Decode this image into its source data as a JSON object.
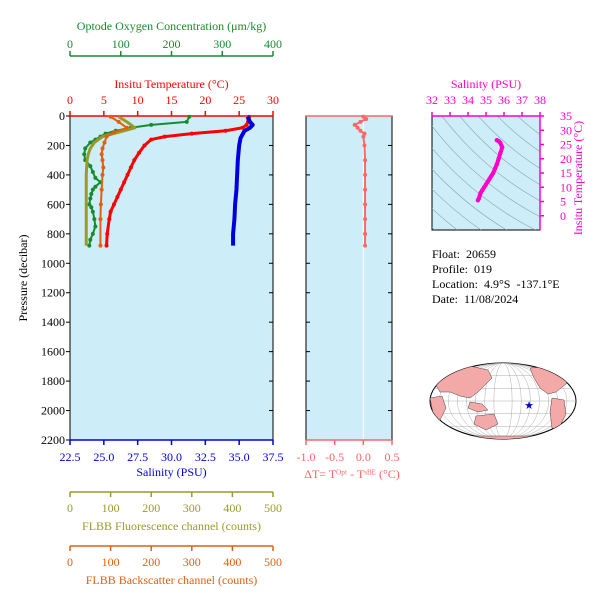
{
  "colors": {
    "oxygen": "#1a8a2e",
    "temperature": "#ff0000",
    "salinity": "#0000dd",
    "fluorescence": "#9a9a2a",
    "backscatter": "#e06010",
    "delta_t": "#ff6666",
    "ts_points": "#ff00cc",
    "plot_bg": "#cdeef8",
    "land": "#f4a9a9",
    "float_marker": "#0000cc"
  },
  "info": {
    "float": "Float:  20659",
    "profile": "Profile:  019",
    "location": "Location:  4.9°S  -137.1°E",
    "date": "Date:  11/08/2024"
  },
  "chart_data": [
    {
      "type": "line",
      "name": "main-profile",
      "ylabel": "Pressure (decibar)",
      "ylim": [
        2200,
        0
      ],
      "yticks": [
        "0",
        "200",
        "400",
        "600",
        "800",
        "1000",
        "1200",
        "1400",
        "1600",
        "1800",
        "2000",
        "2200"
      ],
      "axes": {
        "temperature": {
          "label": "Insitu Temperature (°C)",
          "range": [
            0,
            30
          ],
          "ticks": [
            "0",
            "5",
            "10",
            "15",
            "20",
            "25",
            "30"
          ]
        },
        "salinity": {
          "label": "Salinity (PSU)",
          "range": [
            22.5,
            37.5
          ],
          "ticks": [
            "22.5",
            "25.0",
            "27.5",
            "30.0",
            "32.5",
            "35.0",
            "37.5"
          ]
        },
        "oxygen": {
          "label": "Optode Oxygen Concentration (μm/kg)",
          "range": [
            0,
            400
          ],
          "ticks": [
            "0",
            "100",
            "200",
            "300",
            "400"
          ]
        },
        "fluorescence": {
          "label": "FLBB Fluorescence channel (counts)",
          "range": [
            0,
            500
          ],
          "ticks": [
            "0",
            "100",
            "200",
            "300",
            "400",
            "500"
          ]
        },
        "backscatter": {
          "label": "FLBB Backscatter channel (counts)",
          "range": [
            0,
            500
          ],
          "ticks": [
            "0",
            "100",
            "200",
            "300",
            "400",
            "500"
          ]
        }
      },
      "series": [
        {
          "key": "temperature",
          "x": [
            26.5,
            26.4,
            26.3,
            26.1,
            25.5,
            23,
            18,
            14,
            12,
            11,
            10.2,
            9.5,
            9,
            8.5,
            8,
            7.5,
            7,
            6.5,
            6,
            5.8,
            5.5,
            5.4
          ],
          "y": [
            5,
            20,
            40,
            60,
            80,
            100,
            120,
            140,
            160,
            200,
            250,
            300,
            350,
            400,
            450,
            500,
            550,
            600,
            650,
            700,
            800,
            880
          ]
        },
        {
          "key": "salinity",
          "x": [
            35.6,
            35.7,
            35.8,
            36.0,
            35.8,
            35.4,
            35.1,
            35.0,
            34.9,
            34.85,
            34.8,
            34.75,
            34.7,
            34.65,
            34.6,
            34.55,
            34.55
          ],
          "y": [
            5,
            20,
            40,
            60,
            80,
            100,
            150,
            200,
            300,
            400,
            500,
            550,
            600,
            700,
            750,
            800,
            880
          ]
        },
        {
          "key": "oxygen",
          "x": [
            235,
            230,
            160,
            120,
            90,
            70,
            60,
            50,
            40,
            30,
            28,
            30,
            40,
            45,
            50,
            60,
            50,
            45,
            42,
            40,
            38,
            42,
            45,
            48,
            50,
            45,
            40,
            38
          ],
          "y": [
            5,
            40,
            60,
            80,
            100,
            120,
            140,
            160,
            180,
            220,
            260,
            300,
            340,
            380,
            420,
            450,
            480,
            500,
            530,
            560,
            600,
            620,
            650,
            700,
            750,
            800,
            840,
            880
          ]
        },
        {
          "key": "fluorescence",
          "x": [
            120,
            140,
            160,
            120,
            80,
            60,
            50,
            45,
            42,
            40,
            40,
            40,
            40,
            40
          ],
          "y": [
            5,
            40,
            80,
            110,
            140,
            180,
            220,
            260,
            300,
            400,
            500,
            600,
            700,
            880
          ]
        },
        {
          "key": "backscatter",
          "x": [
            100,
            120,
            140,
            110,
            90,
            85,
            80,
            78,
            80,
            82,
            80,
            78,
            76,
            75,
            75
          ],
          "y": [
            5,
            40,
            80,
            110,
            140,
            180,
            220,
            260,
            300,
            350,
            400,
            500,
            600,
            700,
            880
          ]
        }
      ]
    },
    {
      "type": "line",
      "name": "delta-t",
      "xlabel": "ΔT= T^Opt - T^SBE (°C)",
      "xlim": [
        -1.0,
        0.5
      ],
      "xticks": [
        "-1.0",
        "-0.5",
        "0.0",
        "0.5"
      ],
      "ylim": [
        2200,
        0
      ],
      "series": [
        {
          "name": "ΔT",
          "x": [
            0.0,
            0.05,
            -0.05,
            -0.15,
            -0.1,
            -0.05,
            0.02,
            0.0,
            0.02,
            0.03,
            0.03,
            0.03,
            0.03,
            0.03,
            0.03,
            0.03
          ],
          "y": [
            5,
            20,
            40,
            60,
            80,
            100,
            120,
            140,
            200,
            300,
            400,
            500,
            600,
            700,
            800,
            880
          ]
        }
      ]
    },
    {
      "type": "scatter",
      "name": "ts-diagram",
      "xlabel": "Salinity (PSU)",
      "ylabel": "Insitu Temperature (°C)",
      "xlim": [
        32,
        38
      ],
      "ylim": [
        -5,
        35
      ],
      "xticks": [
        "32",
        "33",
        "34",
        "35",
        "36",
        "37",
        "38"
      ],
      "yticks": [
        "0",
        "5",
        "10",
        "15",
        "20",
        "25",
        "30",
        "35"
      ],
      "series": [
        {
          "name": "T-S",
          "x": [
            34.55,
            34.6,
            34.65,
            34.7,
            34.8,
            34.9,
            35.0,
            35.1,
            35.2,
            35.3,
            35.4,
            35.5,
            35.6,
            35.7,
            35.8,
            35.9,
            35.8,
            35.7,
            35.6
          ],
          "y": [
            5.4,
            6,
            7,
            8,
            9,
            10,
            11,
            12,
            13,
            14,
            15,
            16.5,
            18,
            20,
            22,
            24,
            25.5,
            26.2,
            26.5
          ]
        }
      ]
    }
  ]
}
